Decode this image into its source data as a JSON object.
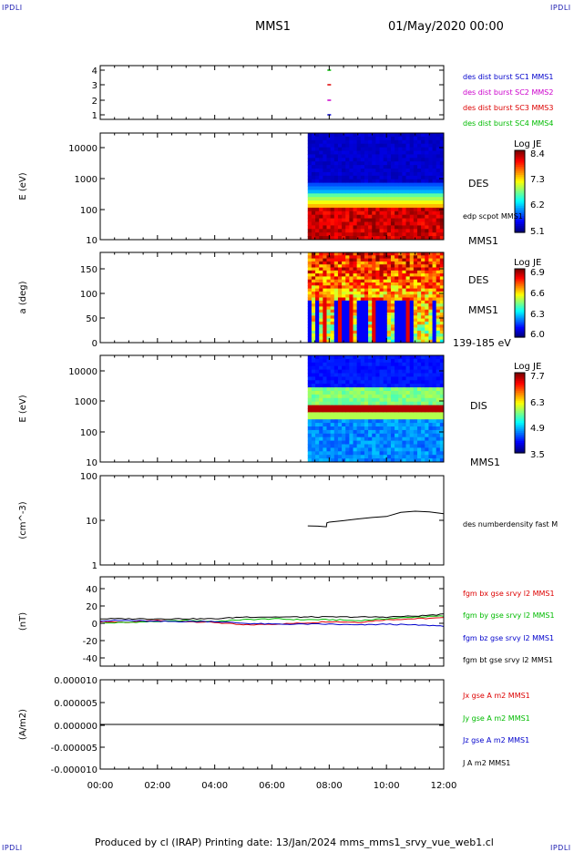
{
  "header": {
    "corner_tl": "IPDLI",
    "corner_tr": "IPDLI",
    "title": "MMS1",
    "date": "01/May/2020 00:00",
    "corner_bl": "IPDLI",
    "corner_br": "IPDLI"
  },
  "footer": {
    "text": "Produced by cl (IRAP)   Printing date: 13/Jan/2024   mms_mms1_srvy_vue_web1.cl"
  },
  "colors": {
    "mms1": "#0000cc",
    "mms2": "#cc00cc",
    "mms3": "#dd0000",
    "mms4": "#00bb00",
    "bx": "#dd0000",
    "by": "#00bb00",
    "bz": "#0000cc",
    "bt": "#000000"
  },
  "chart_data": [
    {
      "id": "burst",
      "type": "scatter",
      "ylim": [
        0.5,
        4.5
      ],
      "yticks": [
        "1",
        "2",
        "3",
        "4"
      ],
      "series": [
        {
          "name": "des dist burst SC1 MMS1",
          "color": "#0000cc",
          "y": 1,
          "x_hours": [
            8.0
          ]
        },
        {
          "name": "des dist burst SC2 MMS2",
          "color": "#cc00cc",
          "y": 2,
          "x_hours": [
            8.0
          ]
        },
        {
          "name": "des dist burst SC3 MMS3",
          "color": "#dd0000",
          "y": 3,
          "x_hours": [
            8.0
          ]
        },
        {
          "name": "des dist burst SC4 MMS4",
          "color": "#00bb00",
          "y": 4,
          "x_hours": [
            8.0
          ]
        }
      ]
    },
    {
      "id": "des_energy",
      "type": "heatmap",
      "ylabel": "E (eV)",
      "yscale": "log",
      "ylim": [
        10,
        30000
      ],
      "yticks": [
        "10",
        "100",
        "1000",
        "10000"
      ],
      "data_start_hour": 7.25,
      "side_labels": [
        "DES",
        "edp scpot MMS1",
        "MMS1"
      ],
      "colorbar": {
        "title": "Log JE",
        "ticks": [
          "5.1",
          "6.2",
          "7.3",
          "8.4"
        ]
      }
    },
    {
      "id": "des_pitch",
      "type": "heatmap",
      "ylabel": "a (deg)",
      "ylim": [
        0,
        180
      ],
      "yticks": [
        "0",
        "50",
        "100",
        "150"
      ],
      "data_start_hour": 7.25,
      "side_labels": [
        "DES",
        "MMS1",
        "139-185 eV"
      ],
      "colorbar": {
        "title": "Log JE",
        "ticks": [
          "6.0",
          "6.3",
          "6.6",
          "6.9"
        ]
      }
    },
    {
      "id": "dis_energy",
      "type": "heatmap",
      "ylabel": "E (eV)",
      "yscale": "log",
      "ylim": [
        10,
        20000
      ],
      "yticks": [
        "10",
        "100",
        "1000",
        "10000"
      ],
      "data_start_hour": 7.25,
      "side_labels": [
        "DIS",
        "MMS1"
      ],
      "colorbar": {
        "title": "Log JE",
        "ticks": [
          "3.5",
          "4.9",
          "6.3",
          "7.7"
        ]
      }
    },
    {
      "id": "density",
      "type": "line",
      "ylabel": "(cm^-3)",
      "yscale": "log",
      "ylim": [
        1,
        100
      ],
      "yticks": [
        "1",
        "10",
        "100"
      ],
      "series": [
        {
          "name": "des numberdensity fast M",
          "color": "#000000",
          "x": [
            7.25,
            7.6,
            7.9,
            7.92,
            8.0,
            8.5,
            9.0,
            9.5,
            10.0,
            10.5,
            11.0,
            11.5,
            12.0
          ],
          "y": [
            7.5,
            7.6,
            7.4,
            8.6,
            9.3,
            10.0,
            10.6,
            11.3,
            12.1,
            14.8,
            15.8,
            15.5,
            14.0
          ]
        }
      ]
    },
    {
      "id": "bfield",
      "type": "line",
      "ylabel": "(nT)",
      "ylim": [
        -50,
        50
      ],
      "yticks": [
        "-40",
        "-20",
        "0",
        "20",
        "40"
      ],
      "series": [
        {
          "name": "fgm bx gse srvy l2 MMS1",
          "color": "#dd0000",
          "x": [
            0,
            1,
            2,
            3,
            4,
            5,
            6,
            7,
            8,
            9,
            10,
            11,
            12
          ],
          "y": [
            0,
            -1,
            1,
            0,
            -1,
            -4,
            -3,
            -2,
            0,
            -1,
            2,
            3,
            4
          ]
        },
        {
          "name": "fgm by gse srvy l2 MMS1",
          "color": "#00bb00",
          "x": [
            0,
            1,
            2,
            3,
            4,
            5,
            6,
            7,
            8,
            9,
            10,
            11,
            12
          ],
          "y": [
            -2,
            -1,
            0,
            1,
            0,
            2,
            3,
            2,
            2,
            1,
            3,
            5,
            6
          ]
        },
        {
          "name": "fgm bz gse srvy l2 MMS1",
          "color": "#0000cc",
          "x": [
            0,
            1,
            2,
            3,
            4,
            5,
            6,
            7,
            8,
            9,
            10,
            11,
            12
          ],
          "y": [
            1,
            1,
            0,
            0,
            0,
            -2,
            -3,
            -3,
            -3,
            -4,
            -3,
            -4,
            -5
          ]
        },
        {
          "name": "fgm bt gse srvy l2 MMS1",
          "color": "#000000",
          "x": [
            0,
            1,
            2,
            3,
            4,
            5,
            6,
            7,
            8,
            9,
            10,
            11,
            12
          ],
          "y": [
            3,
            3,
            3,
            3,
            3,
            5,
            5,
            5,
            5,
            5,
            5,
            6,
            8
          ]
        }
      ]
    },
    {
      "id": "current",
      "type": "line",
      "ylabel": "(A/m2)",
      "ylim": [
        -1e-05,
        1e-05
      ],
      "yticks": [
        "-0.000010",
        "-0.000005",
        "0.000000",
        "0.000005",
        "0.000010"
      ],
      "xticks": [
        "00:00",
        "02:00",
        "04:00",
        "06:00",
        "08:00",
        "10:00",
        "12:00"
      ],
      "series": [
        {
          "name": "Jx gse A m2 MMS1",
          "color": "#dd0000",
          "x": [
            0,
            12
          ],
          "y": [
            0,
            0
          ]
        },
        {
          "name": "Jy gse A m2 MMS1",
          "color": "#00bb00",
          "x": [
            0,
            12
          ],
          "y": [
            0,
            0
          ]
        },
        {
          "name": "Jz gse A m2 MMS1",
          "color": "#0000cc",
          "x": [
            0,
            12
          ],
          "y": [
            0,
            0
          ]
        },
        {
          "name": "J A m2 MMS1",
          "color": "#000000",
          "x": [
            0,
            12
          ],
          "y": [
            0,
            0
          ]
        }
      ]
    }
  ]
}
